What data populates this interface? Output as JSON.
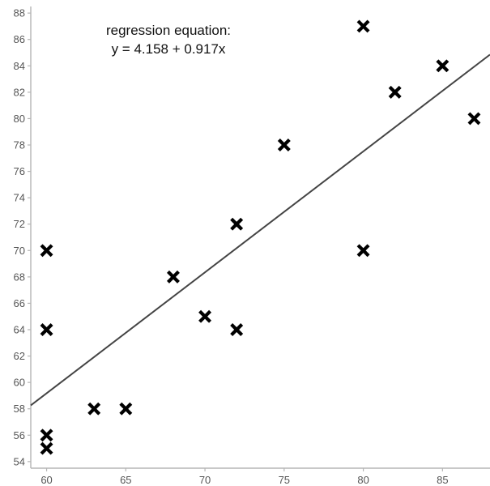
{
  "chart_data": {
    "type": "scatter",
    "title": "",
    "xlabel": "",
    "ylabel": "",
    "xlim": [
      59,
      88
    ],
    "ylim": [
      53.5,
      88.5
    ],
    "x_ticks": [
      60,
      65,
      70,
      75,
      80,
      85
    ],
    "y_ticks": [
      54,
      56,
      58,
      60,
      62,
      64,
      66,
      68,
      70,
      72,
      74,
      76,
      78,
      80,
      82,
      84,
      86,
      88
    ],
    "grid": false,
    "marker": "x",
    "marker_color": "#000000",
    "line_color": "#444444",
    "points": [
      {
        "x": 60,
        "y": 55
      },
      {
        "x": 60,
        "y": 56
      },
      {
        "x": 60,
        "y": 64
      },
      {
        "x": 60,
        "y": 70
      },
      {
        "x": 63,
        "y": 58
      },
      {
        "x": 65,
        "y": 58
      },
      {
        "x": 68,
        "y": 68
      },
      {
        "x": 70,
        "y": 65
      },
      {
        "x": 72,
        "y": 64
      },
      {
        "x": 72,
        "y": 72
      },
      {
        "x": 75,
        "y": 78
      },
      {
        "x": 80,
        "y": 70
      },
      {
        "x": 80,
        "y": 87
      },
      {
        "x": 82,
        "y": 82
      },
      {
        "x": 85,
        "y": 84
      },
      {
        "x": 87,
        "y": 80
      }
    ],
    "regression": {
      "intercept": 4.158,
      "slope": 0.917
    },
    "annotation": {
      "line1": "regression equation:",
      "line2": "y = 4.158 + 0.917x"
    }
  }
}
